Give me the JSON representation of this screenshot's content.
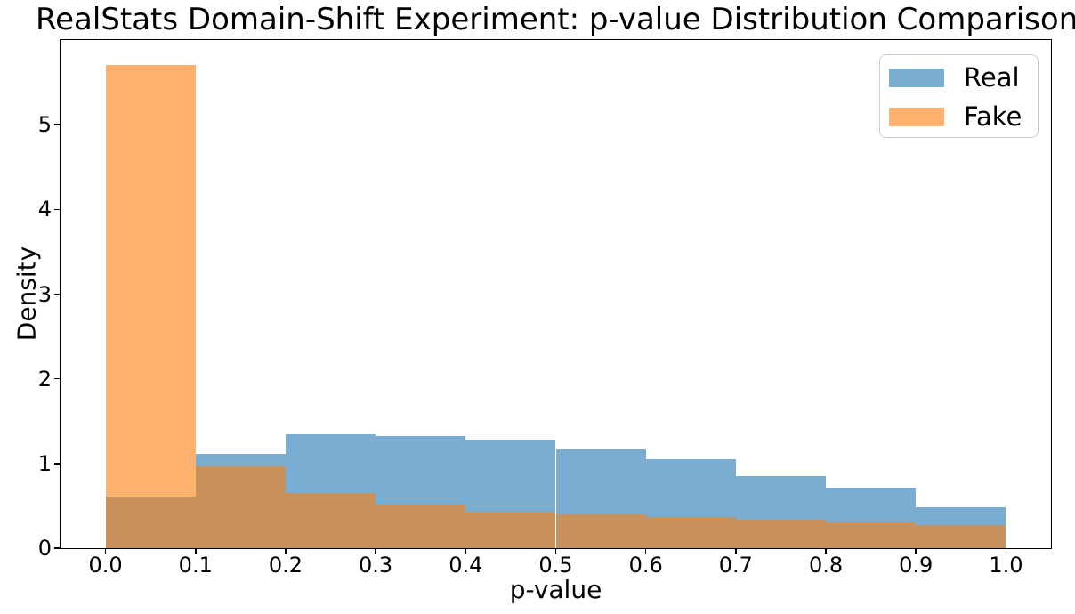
{
  "chart_data": {
    "type": "bar",
    "subtype": "overlaid-histogram-density",
    "title": "RealStats Domain-Shift Experiment: p-value Distribution Comparison",
    "xlabel": "p-value",
    "ylabel": "Density",
    "bin_edges": [
      0.0,
      0.1,
      0.2,
      0.3,
      0.4,
      0.5,
      0.6,
      0.7,
      0.8,
      0.9,
      1.0
    ],
    "series": [
      {
        "name": "Real",
        "color": "#1f77b4",
        "alpha": 0.6,
        "densities": [
          0.61,
          1.11,
          1.35,
          1.32,
          1.28,
          1.17,
          1.05,
          0.85,
          0.71,
          0.48
        ]
      },
      {
        "name": "Fake",
        "color": "#ff7f0e",
        "alpha": 0.6,
        "densities": [
          5.71,
          0.97,
          0.65,
          0.52,
          0.43,
          0.4,
          0.37,
          0.34,
          0.31,
          0.27
        ]
      }
    ],
    "draw_order_note": "Real drawn first, Fake overlaid on top",
    "xticks": [
      {
        "label": "0.0",
        "value": 0.0
      },
      {
        "label": "0.1",
        "value": 0.1
      },
      {
        "label": "0.2",
        "value": 0.2
      },
      {
        "label": "0.3",
        "value": 0.3
      },
      {
        "label": "0.4",
        "value": 0.4
      },
      {
        "label": "0.5",
        "value": 0.5
      },
      {
        "label": "0.6",
        "value": 0.6
      },
      {
        "label": "0.7",
        "value": 0.7
      },
      {
        "label": "0.8",
        "value": 0.8
      },
      {
        "label": "0.9",
        "value": 0.9
      },
      {
        "label": "1.0",
        "value": 1.0
      }
    ],
    "yticks": [
      {
        "label": "0",
        "value": 0
      },
      {
        "label": "1",
        "value": 1
      },
      {
        "label": "2",
        "value": 2
      },
      {
        "label": "3",
        "value": 3
      },
      {
        "label": "4",
        "value": 4
      },
      {
        "label": "5",
        "value": 5
      }
    ],
    "xlim": [
      -0.05,
      1.05
    ],
    "ylim": [
      0,
      6.0
    ],
    "grid": false,
    "plot_background": "#ffffff",
    "legend": {
      "position": "upper right",
      "entries": [
        "Real",
        "Fake"
      ]
    }
  }
}
